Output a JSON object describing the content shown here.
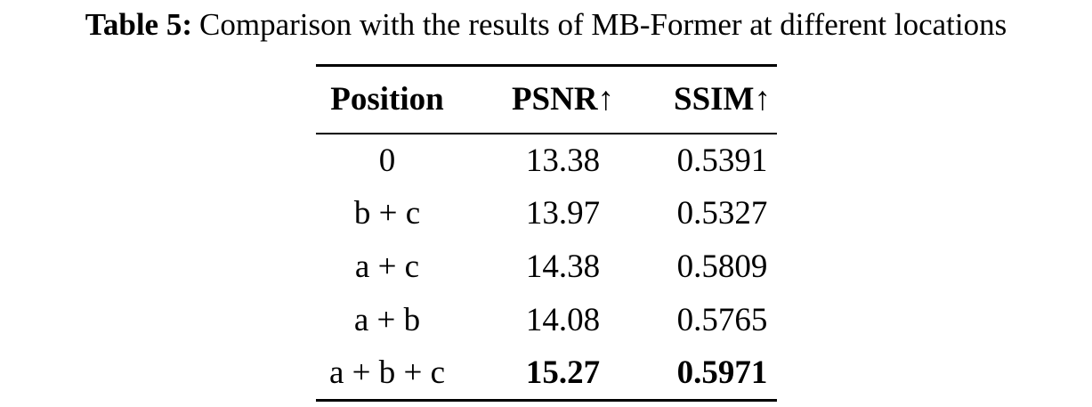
{
  "caption": {
    "label": "Table 5:",
    "text": "Comparison with the results of MB-Former at different locations"
  },
  "table": {
    "columns": [
      "Position",
      "PSNR↑",
      "SSIM↑"
    ],
    "rows": [
      [
        "0",
        "13.38",
        "0.5391"
      ],
      [
        "b + c",
        "13.97",
        "0.5327"
      ],
      [
        "a + c",
        "14.38",
        "0.5809"
      ],
      [
        "a + b",
        "14.08",
        "0.5765"
      ],
      [
        "a + b + c",
        "15.27",
        "0.5971"
      ]
    ]
  }
}
